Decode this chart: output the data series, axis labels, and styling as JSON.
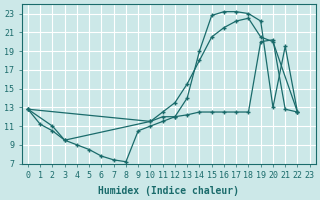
{
  "title": "",
  "xlabel": "Humidex (Indice chaleur)",
  "ylabel": "",
  "bg_color": "#cce8e8",
  "grid_color": "#ffffff",
  "line_color": "#1a6b6b",
  "xlim": [
    -0.5,
    23.5
  ],
  "ylim": [
    7,
    24
  ],
  "yticks": [
    7,
    9,
    11,
    13,
    15,
    17,
    19,
    21,
    23
  ],
  "xticks": [
    0,
    1,
    2,
    3,
    4,
    5,
    6,
    7,
    8,
    9,
    10,
    11,
    12,
    13,
    14,
    15,
    16,
    17,
    18,
    19,
    20,
    21,
    22,
    23
  ],
  "line1_x": [
    0,
    1,
    2,
    3,
    4,
    5,
    6,
    7,
    8,
    9,
    10,
    11,
    12,
    13,
    14,
    15,
    16,
    17,
    18,
    19,
    20,
    21,
    22
  ],
  "line1_y": [
    12.8,
    11.2,
    10.5,
    9.5,
    9.0,
    8.5,
    7.8,
    7.4,
    7.2,
    10.5,
    11.0,
    11.5,
    12.0,
    14.0,
    19.0,
    22.8,
    23.2,
    23.2,
    23.0,
    22.2,
    13.0,
    19.5,
    12.5
  ],
  "line2_x": [
    0,
    2,
    3,
    10,
    11,
    12,
    13,
    14,
    15,
    16,
    17,
    18,
    19,
    20,
    22
  ],
  "line2_y": [
    12.8,
    11.0,
    9.5,
    11.5,
    12.5,
    13.5,
    15.5,
    18.0,
    20.5,
    21.5,
    22.2,
    22.5,
    20.5,
    20.0,
    12.5
  ],
  "line3_x": [
    0,
    10,
    11,
    12,
    13,
    14,
    15,
    16,
    17,
    18,
    19,
    20,
    21,
    22
  ],
  "line3_y": [
    12.8,
    11.5,
    12.0,
    12.0,
    12.2,
    12.5,
    12.5,
    12.5,
    12.5,
    12.5,
    20.0,
    20.2,
    12.8,
    12.5
  ]
}
